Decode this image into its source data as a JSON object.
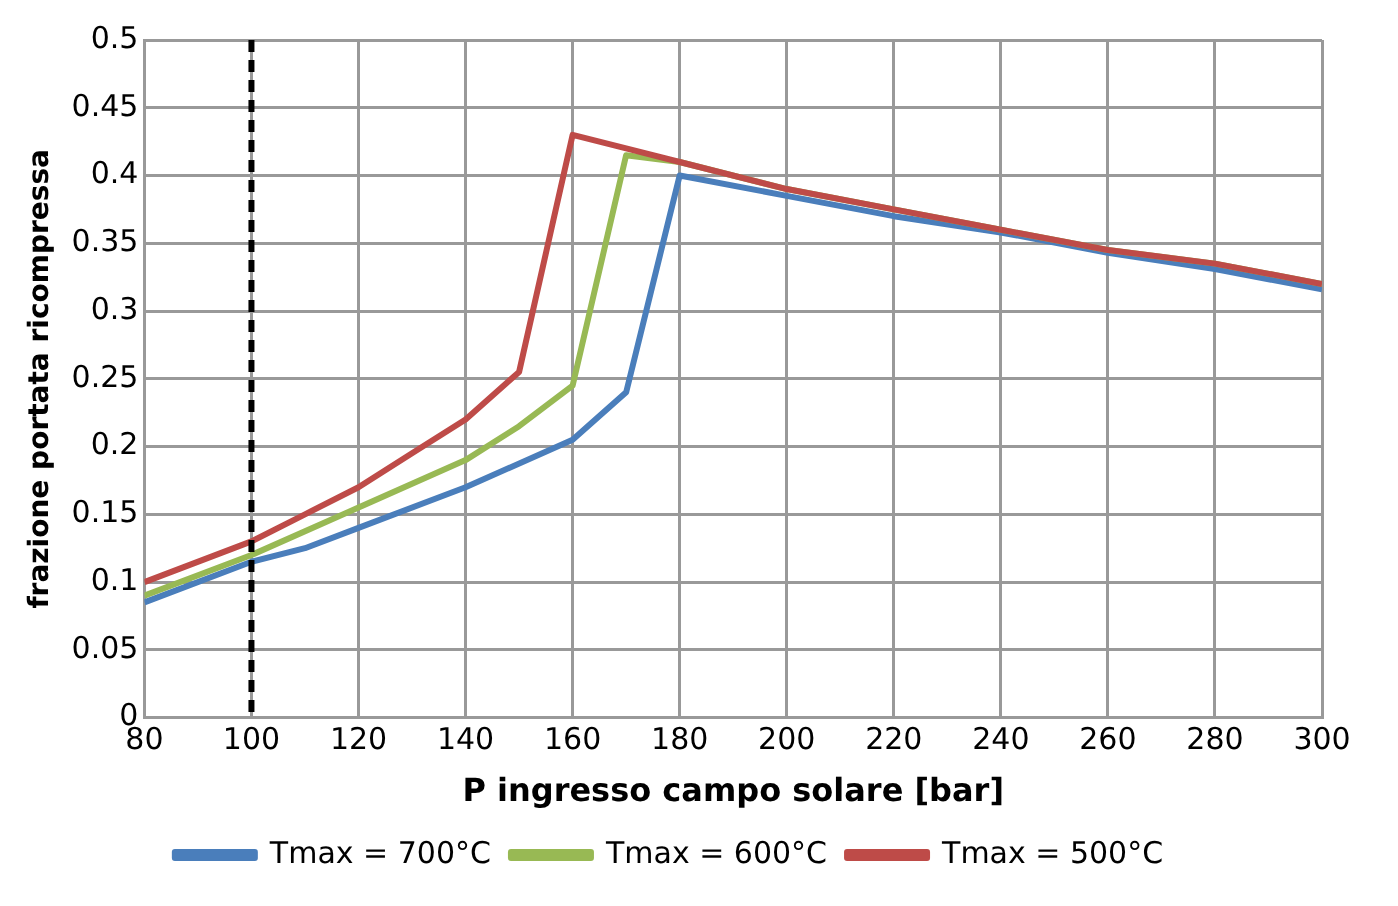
{
  "chart_data": {
    "type": "line",
    "xlabel": "P ingresso campo solare [bar]",
    "ylabel": "frazione portata ricompressa",
    "xlim": [
      80,
      300
    ],
    "xticks": [
      80,
      100,
      120,
      140,
      160,
      180,
      200,
      220,
      240,
      260,
      280,
      300
    ],
    "ylim": [
      0,
      0.5
    ],
    "yticks": [
      0,
      0.05,
      0.1,
      0.15,
      0.2,
      0.25,
      0.3,
      0.35,
      0.4,
      0.45,
      0.5
    ],
    "grid": true,
    "legend": "bottom",
    "marker": "none",
    "line_style": "solid",
    "ref_lines": [
      {
        "axis": "x",
        "value": 100,
        "color": "#000000",
        "line_style": "dashed"
      }
    ],
    "series": [
      {
        "name": "Tmax = 700°C",
        "color": "#4a7ebb",
        "x": [
          80,
          100,
          110,
          120,
          140,
          160,
          170,
          180,
          200,
          220,
          240,
          260,
          280,
          300
        ],
        "values": [
          0.085,
          0.115,
          0.125,
          0.14,
          0.17,
          0.205,
          0.24,
          0.4,
          0.385,
          0.37,
          0.358,
          0.343,
          0.331,
          0.316
        ]
      },
      {
        "name": "Tmax = 600°C",
        "color": "#98b954",
        "x": [
          80,
          100,
          120,
          140,
          150,
          160,
          170,
          180,
          200,
          220,
          240,
          260,
          280,
          300
        ],
        "values": [
          0.09,
          0.12,
          0.155,
          0.19,
          0.215,
          0.245,
          0.415,
          0.41,
          0.39,
          0.375,
          0.36,
          0.345,
          0.335,
          0.32
        ]
      },
      {
        "name": "Tmax = 500°C",
        "color": "#be4b48",
        "x": [
          80,
          100,
          110,
          120,
          130,
          140,
          150,
          160,
          170,
          180,
          200,
          220,
          240,
          260,
          280,
          300
        ],
        "values": [
          0.1,
          0.13,
          0.15,
          0.17,
          0.195,
          0.22,
          0.255,
          0.43,
          0.42,
          0.41,
          0.39,
          0.375,
          0.36,
          0.345,
          0.335,
          0.32
        ]
      }
    ]
  }
}
